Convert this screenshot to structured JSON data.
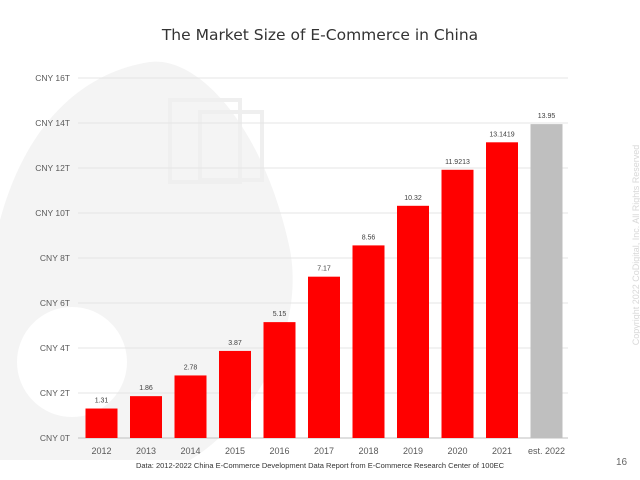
{
  "chart_data": {
    "type": "bar",
    "title": "The Market Size of E-Commerce in China",
    "categories": [
      "2012",
      "2013",
      "2014",
      "2015",
      "2016",
      "2017",
      "2018",
      "2019",
      "2020",
      "2021",
      "est. 2022"
    ],
    "values": [
      1.31,
      1.86,
      2.78,
      3.87,
      5.15,
      7.17,
      8.56,
      10.32,
      11.9213,
      13.1419,
      13.95
    ],
    "data_labels": [
      "1.31",
      "1.86",
      "2.78",
      "3.87",
      "5.15",
      "7.17",
      "8.56",
      "10.32",
      "11.9213",
      "13.1419",
      "13.95"
    ],
    "estimated": [
      false,
      false,
      false,
      false,
      false,
      false,
      false,
      false,
      false,
      false,
      true
    ],
    "ylim": [
      0,
      16
    ],
    "yticks": [
      0,
      2,
      4,
      6,
      8,
      10,
      12,
      14,
      16
    ],
    "ytick_labels": [
      "CNY 0T",
      "CNY 2T",
      "CNY 4T",
      "CNY 6T",
      "CNY 8T",
      "CNY 10T",
      "CNY 12T",
      "CNY 14T",
      "CNY 16T"
    ],
    "xlabel": "",
    "ylabel": "",
    "grid": true,
    "colors": {
      "actual": "#ff0000",
      "estimate": "#bfbfbf"
    }
  },
  "footer": {
    "source": "Data: 2012-2022 China E-Commerce Development Data Report from E-Commerce Research Center of 100EC",
    "page_number": "16",
    "copyright": "Copyright 2022 CoDigital, Inc. All Rights Reserved"
  }
}
